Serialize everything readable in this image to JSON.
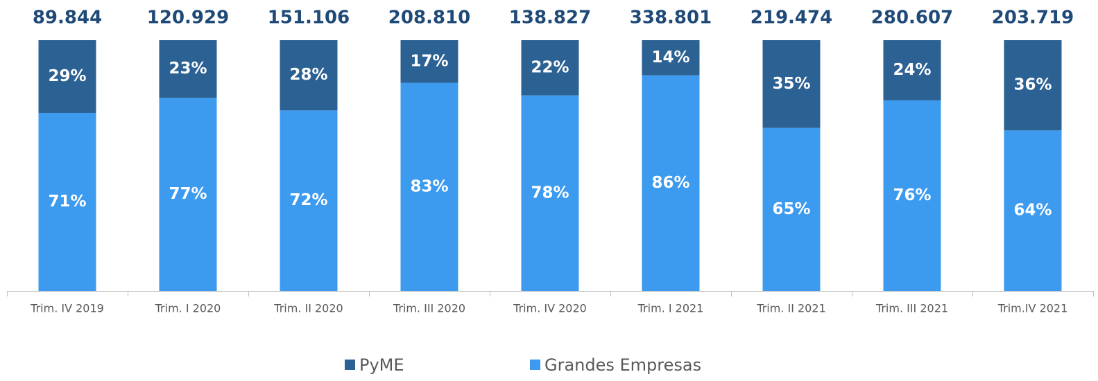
{
  "chart_data": {
    "type": "stacked_bar_100",
    "categories": [
      "Trim. IV 2019",
      "Trim. I 2020",
      "Trim. II 2020",
      "Trim. III 2020",
      "Trim. IV 2020",
      "Trim. I 2021",
      "Trim. II 2021",
      "Trim. III 2021",
      "Trim.IV 2021"
    ],
    "series": [
      {
        "name": "Grandes Empresas",
        "color": "#3d9bef",
        "values": [
          71,
          77,
          72,
          83,
          78,
          86,
          65,
          76,
          64
        ],
        "value_labels": [
          "71%",
          "77%",
          "72%",
          "83%",
          "78%",
          "86%",
          "65%",
          "76%",
          "64%"
        ]
      },
      {
        "name": "PyME",
        "color": "#2c6193",
        "values": [
          29,
          23,
          28,
          17,
          22,
          14,
          35,
          24,
          36
        ],
        "value_labels": [
          "29%",
          "23%",
          "28%",
          "17%",
          "22%",
          "14%",
          "35%",
          "24%",
          "36%"
        ]
      }
    ],
    "totals": [
      89844,
      120929,
      151106,
      208810,
      138827,
      338801,
      219474,
      280607,
      203719
    ],
    "total_labels": [
      "89.844",
      "120.929",
      "151.106",
      "208.810",
      "138.827",
      "338.801",
      "219.474",
      "280.607",
      "203.719"
    ],
    "ylim": [
      0,
      100
    ],
    "legend": "bottom"
  }
}
